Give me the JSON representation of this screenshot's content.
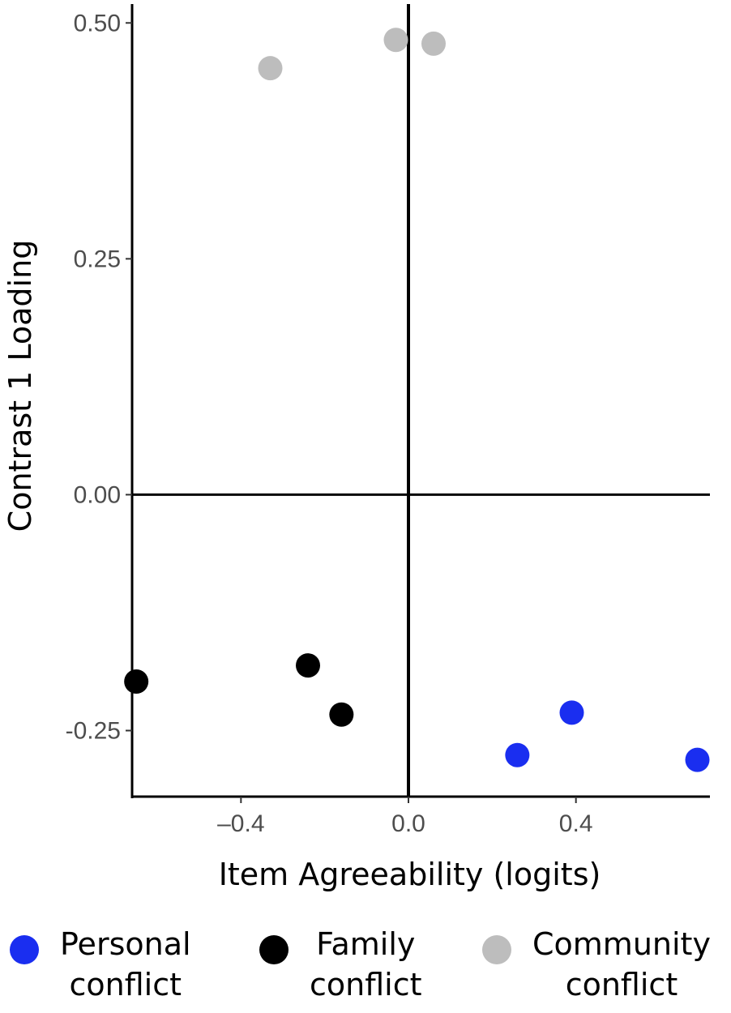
{
  "chart_data": {
    "type": "scatter",
    "title": "",
    "xlabel": "Item Agreeability (logits)",
    "ylabel": "Contrast 1 Loading",
    "xlim": [
      -0.66,
      0.72
    ],
    "ylim": [
      -0.32,
      0.52
    ],
    "x_ticks": [
      {
        "value": -0.4,
        "label": "–0.4"
      },
      {
        "value": 0.0,
        "label": "0.0"
      },
      {
        "value": 0.4,
        "label": "0.4"
      }
    ],
    "y_ticks": [
      {
        "value": 0.5,
        "label": "0.50"
      },
      {
        "value": 0.25,
        "label": "0.25"
      },
      {
        "value": 0.0,
        "label": "0.00"
      },
      {
        "value": -0.25,
        "label": "-0.25"
      }
    ],
    "reference_lines": {
      "x": 0,
      "y": 0
    },
    "grid": false,
    "legend_position": "bottom",
    "series": [
      {
        "name": "Personal conflict",
        "name_lines": [
          "Personal",
          "conflict"
        ],
        "color": "#1a2ef0",
        "points": [
          {
            "x": 0.26,
            "y": -0.276
          },
          {
            "x": 0.39,
            "y": -0.231
          },
          {
            "x": 0.69,
            "y": -0.281
          }
        ]
      },
      {
        "name": "Family conflict",
        "name_lines": [
          "Family",
          "conflict"
        ],
        "color": "#000000",
        "points": [
          {
            "x": -0.65,
            "y": -0.198
          },
          {
            "x": -0.24,
            "y": -0.181
          },
          {
            "x": -0.16,
            "y": -0.233
          }
        ]
      },
      {
        "name": "Community conflict",
        "name_lines": [
          "Community",
          "conflict"
        ],
        "color": "#bdbdbd",
        "points": [
          {
            "x": -0.33,
            "y": 0.452
          },
          {
            "x": -0.03,
            "y": 0.482
          },
          {
            "x": 0.06,
            "y": 0.478
          }
        ]
      }
    ]
  }
}
